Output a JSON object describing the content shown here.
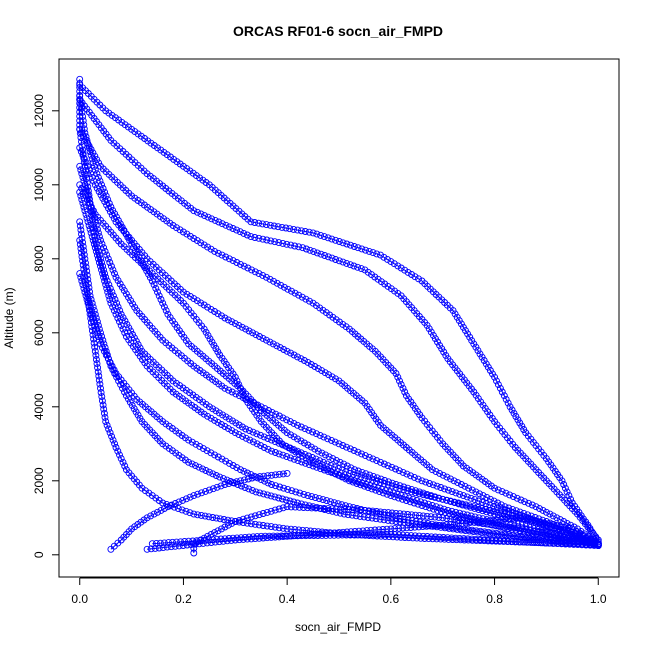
{
  "chart_data": {
    "type": "scatter",
    "title": "ORCAS RF01-6 socn_air_FMPD",
    "xlabel": "socn_air_FMPD",
    "ylabel": "Altitude (m)",
    "xlim": [
      -0.04,
      1.04
    ],
    "ylim": [
      -600,
      13400
    ],
    "x_ticks": [
      0.0,
      0.2,
      0.4,
      0.6,
      0.8,
      1.0
    ],
    "x_tick_labels": [
      "0.0",
      "0.2",
      "0.4",
      "0.6",
      "0.8",
      "1.0"
    ],
    "y_ticks": [
      0,
      2000,
      4000,
      6000,
      8000,
      10000,
      12000
    ],
    "y_tick_labels": [
      "0",
      "2000",
      "4000",
      "6000",
      "8000",
      "10000",
      "12000"
    ],
    "marker": "open-circle",
    "connected": true,
    "grid": false,
    "color": "#0000ff",
    "series": [
      {
        "values": [
          [
            0.0,
            12850
          ],
          [
            0.0,
            12200
          ],
          [
            0.0,
            11500
          ],
          [
            0.01,
            10500
          ],
          [
            0.02,
            9500
          ],
          [
            0.03,
            8500
          ],
          [
            0.05,
            7500
          ],
          [
            0.08,
            6500
          ],
          [
            0.12,
            5500
          ],
          [
            0.18,
            4700
          ],
          [
            0.25,
            4000
          ],
          [
            0.32,
            3400
          ],
          [
            0.42,
            2800
          ],
          [
            0.52,
            2200
          ],
          [
            0.64,
            1700
          ],
          [
            0.76,
            1300
          ],
          [
            0.88,
            900
          ],
          [
            0.97,
            500
          ],
          [
            1.0,
            280
          ]
        ]
      },
      {
        "values": [
          [
            0.0,
            12700
          ],
          [
            0.05,
            12000
          ],
          [
            0.15,
            11000
          ],
          [
            0.25,
            10000
          ],
          [
            0.33,
            9000
          ],
          [
            0.45,
            8700
          ],
          [
            0.58,
            8100
          ],
          [
            0.66,
            7400
          ],
          [
            0.72,
            6600
          ],
          [
            0.76,
            5700
          ],
          [
            0.8,
            4800
          ],
          [
            0.83,
            4000
          ],
          [
            0.86,
            3300
          ],
          [
            0.9,
            2600
          ],
          [
            0.93,
            2000
          ],
          [
            0.95,
            1400
          ],
          [
            0.98,
            800
          ],
          [
            1.0,
            350
          ]
        ]
      },
      {
        "values": [
          [
            0.0,
            12300
          ],
          [
            0.06,
            11200
          ],
          [
            0.13,
            10300
          ],
          [
            0.22,
            9300
          ],
          [
            0.33,
            8600
          ],
          [
            0.43,
            8300
          ],
          [
            0.55,
            7700
          ],
          [
            0.62,
            7000
          ],
          [
            0.67,
            6200
          ],
          [
            0.71,
            5300
          ],
          [
            0.76,
            4400
          ],
          [
            0.8,
            3600
          ],
          [
            0.84,
            2900
          ],
          [
            0.88,
            2300
          ],
          [
            0.92,
            1700
          ],
          [
            0.96,
            1100
          ],
          [
            1.0,
            400
          ]
        ]
      },
      {
        "values": [
          [
            0.0,
            11500
          ],
          [
            0.04,
            10500
          ],
          [
            0.1,
            9700
          ],
          [
            0.18,
            8900
          ],
          [
            0.26,
            8200
          ],
          [
            0.36,
            7500
          ],
          [
            0.45,
            6800
          ],
          [
            0.52,
            6100
          ],
          [
            0.57,
            5500
          ],
          [
            0.61,
            4900
          ],
          [
            0.63,
            4300
          ],
          [
            0.66,
            3700
          ],
          [
            0.7,
            3000
          ],
          [
            0.74,
            2400
          ],
          [
            0.8,
            1800
          ],
          [
            0.88,
            1300
          ],
          [
            0.96,
            700
          ],
          [
            1.0,
            300
          ]
        ]
      },
      {
        "values": [
          [
            0.0,
            11000
          ],
          [
            0.03,
            10000
          ],
          [
            0.07,
            9000
          ],
          [
            0.13,
            8000
          ],
          [
            0.2,
            7100
          ],
          [
            0.28,
            6400
          ],
          [
            0.36,
            5800
          ],
          [
            0.44,
            5200
          ],
          [
            0.5,
            4700
          ],
          [
            0.55,
            4100
          ],
          [
            0.58,
            3500
          ],
          [
            0.63,
            2900
          ],
          [
            0.68,
            2300
          ],
          [
            0.75,
            1800
          ],
          [
            0.82,
            1300
          ],
          [
            0.9,
            900
          ],
          [
            0.97,
            500
          ],
          [
            1.0,
            250
          ]
        ]
      },
      {
        "values": [
          [
            0.0,
            10500
          ],
          [
            0.02,
            9500
          ],
          [
            0.04,
            8500
          ],
          [
            0.07,
            7500
          ],
          [
            0.11,
            6600
          ],
          [
            0.16,
            5800
          ],
          [
            0.22,
            5100
          ],
          [
            0.28,
            4500
          ],
          [
            0.35,
            4000
          ],
          [
            0.42,
            3500
          ],
          [
            0.5,
            3000
          ],
          [
            0.58,
            2500
          ],
          [
            0.66,
            2000
          ],
          [
            0.74,
            1600
          ],
          [
            0.82,
            1200
          ],
          [
            0.9,
            800
          ],
          [
            0.97,
            450
          ],
          [
            1.0,
            250
          ]
        ]
      },
      {
        "values": [
          [
            0.0,
            9800
          ],
          [
            0.02,
            8800
          ],
          [
            0.04,
            7800
          ],
          [
            0.06,
            6800
          ],
          [
            0.09,
            5900
          ],
          [
            0.13,
            5100
          ],
          [
            0.18,
            4400
          ],
          [
            0.24,
            3800
          ],
          [
            0.3,
            3300
          ],
          [
            0.37,
            2800
          ],
          [
            0.45,
            2400
          ],
          [
            0.53,
            2000
          ],
          [
            0.62,
            1600
          ],
          [
            0.71,
            1200
          ],
          [
            0.8,
            900
          ],
          [
            0.89,
            600
          ],
          [
            0.97,
            350
          ]
        ]
      },
      {
        "values": [
          [
            0.0,
            9000
          ],
          [
            0.01,
            8000
          ],
          [
            0.02,
            7000
          ],
          [
            0.04,
            6000
          ],
          [
            0.06,
            5100
          ],
          [
            0.09,
            4300
          ],
          [
            0.12,
            3600
          ],
          [
            0.16,
            3000
          ],
          [
            0.21,
            2500
          ],
          [
            0.27,
            2100
          ],
          [
            0.34,
            1700
          ],
          [
            0.42,
            1400
          ],
          [
            0.51,
            1100
          ],
          [
            0.61,
            900
          ],
          [
            0.72,
            700
          ],
          [
            0.83,
            500
          ],
          [
            0.93,
            350
          ],
          [
            1.0,
            250
          ]
        ]
      },
      {
        "values": [
          [
            0.0,
            8500
          ],
          [
            0.01,
            7500
          ],
          [
            0.02,
            6500
          ],
          [
            0.03,
            5500
          ],
          [
            0.04,
            4500
          ],
          [
            0.05,
            3600
          ],
          [
            0.07,
            2900
          ],
          [
            0.09,
            2300
          ],
          [
            0.12,
            1800
          ],
          [
            0.16,
            1400
          ],
          [
            0.22,
            1100
          ],
          [
            0.3,
            900
          ],
          [
            0.4,
            700
          ],
          [
            0.52,
            550
          ],
          [
            0.65,
            450
          ],
          [
            0.78,
            380
          ],
          [
            0.9,
            320
          ],
          [
            1.0,
            280
          ]
        ]
      },
      {
        "values": [
          [
            0.0,
            12400
          ],
          [
            0.01,
            11400
          ],
          [
            0.03,
            10400
          ],
          [
            0.06,
            9400
          ],
          [
            0.1,
            8400
          ],
          [
            0.14,
            7400
          ],
          [
            0.17,
            6500
          ],
          [
            0.21,
            5700
          ],
          [
            0.26,
            5100
          ],
          [
            0.31,
            4500
          ],
          [
            0.35,
            3900
          ],
          [
            0.4,
            3300
          ],
          [
            0.46,
            2800
          ],
          [
            0.53,
            2300
          ],
          [
            0.61,
            1900
          ],
          [
            0.7,
            1500
          ],
          [
            0.8,
            1100
          ],
          [
            0.9,
            700
          ],
          [
            0.98,
            350
          ]
        ]
      },
      {
        "values": [
          [
            0.0,
            10000
          ],
          [
            0.03,
            9200
          ],
          [
            0.08,
            8400
          ],
          [
            0.14,
            7600
          ],
          [
            0.2,
            6800
          ],
          [
            0.24,
            6100
          ],
          [
            0.27,
            5400
          ],
          [
            0.3,
            4800
          ],
          [
            0.32,
            4200
          ],
          [
            0.35,
            3600
          ],
          [
            0.39,
            3000
          ],
          [
            0.45,
            2500
          ],
          [
            0.52,
            2000
          ],
          [
            0.6,
            1600
          ],
          [
            0.69,
            1200
          ],
          [
            0.78,
            850
          ],
          [
            0.88,
            550
          ],
          [
            0.96,
            350
          ]
        ]
      },
      {
        "values": [
          [
            0.0,
            7600
          ],
          [
            0.02,
            6600
          ],
          [
            0.04,
            5700
          ],
          [
            0.07,
            4900
          ],
          [
            0.11,
            4200
          ],
          [
            0.16,
            3600
          ],
          [
            0.21,
            3100
          ],
          [
            0.26,
            2700
          ],
          [
            0.31,
            2300
          ],
          [
            0.37,
            1900
          ],
          [
            0.44,
            1600
          ],
          [
            0.52,
            1300
          ],
          [
            0.61,
            1000
          ],
          [
            0.71,
            750
          ],
          [
            0.82,
            550
          ],
          [
            0.92,
            400
          ],
          [
            1.0,
            300
          ]
        ]
      },
      {
        "values": [
          [
            0.06,
            150
          ],
          [
            0.08,
            400
          ],
          [
            0.1,
            700
          ],
          [
            0.13,
            1000
          ],
          [
            0.17,
            1300
          ],
          [
            0.22,
            1600
          ],
          [
            0.28,
            1900
          ],
          [
            0.34,
            2100
          ],
          [
            0.4,
            2200
          ]
        ]
      },
      {
        "values": [
          [
            0.13,
            150
          ],
          [
            0.3,
            400
          ],
          [
            0.5,
            600
          ],
          [
            0.7,
            800
          ],
          [
            0.85,
            1000
          ],
          [
            0.95,
            700
          ],
          [
            1.0,
            300
          ]
        ]
      },
      {
        "values": [
          [
            0.22,
            50
          ],
          [
            0.22,
            300
          ],
          [
            0.3,
            900
          ],
          [
            0.4,
            1300
          ],
          [
            0.55,
            1200
          ],
          [
            0.7,
            1000
          ],
          [
            0.9,
            600
          ],
          [
            1.0,
            300
          ]
        ]
      },
      {
        "values": [
          [
            0.14,
            300
          ],
          [
            0.35,
            500
          ],
          [
            0.6,
            550
          ],
          [
            0.85,
            350
          ],
          [
            1.0,
            250
          ]
        ]
      }
    ]
  }
}
